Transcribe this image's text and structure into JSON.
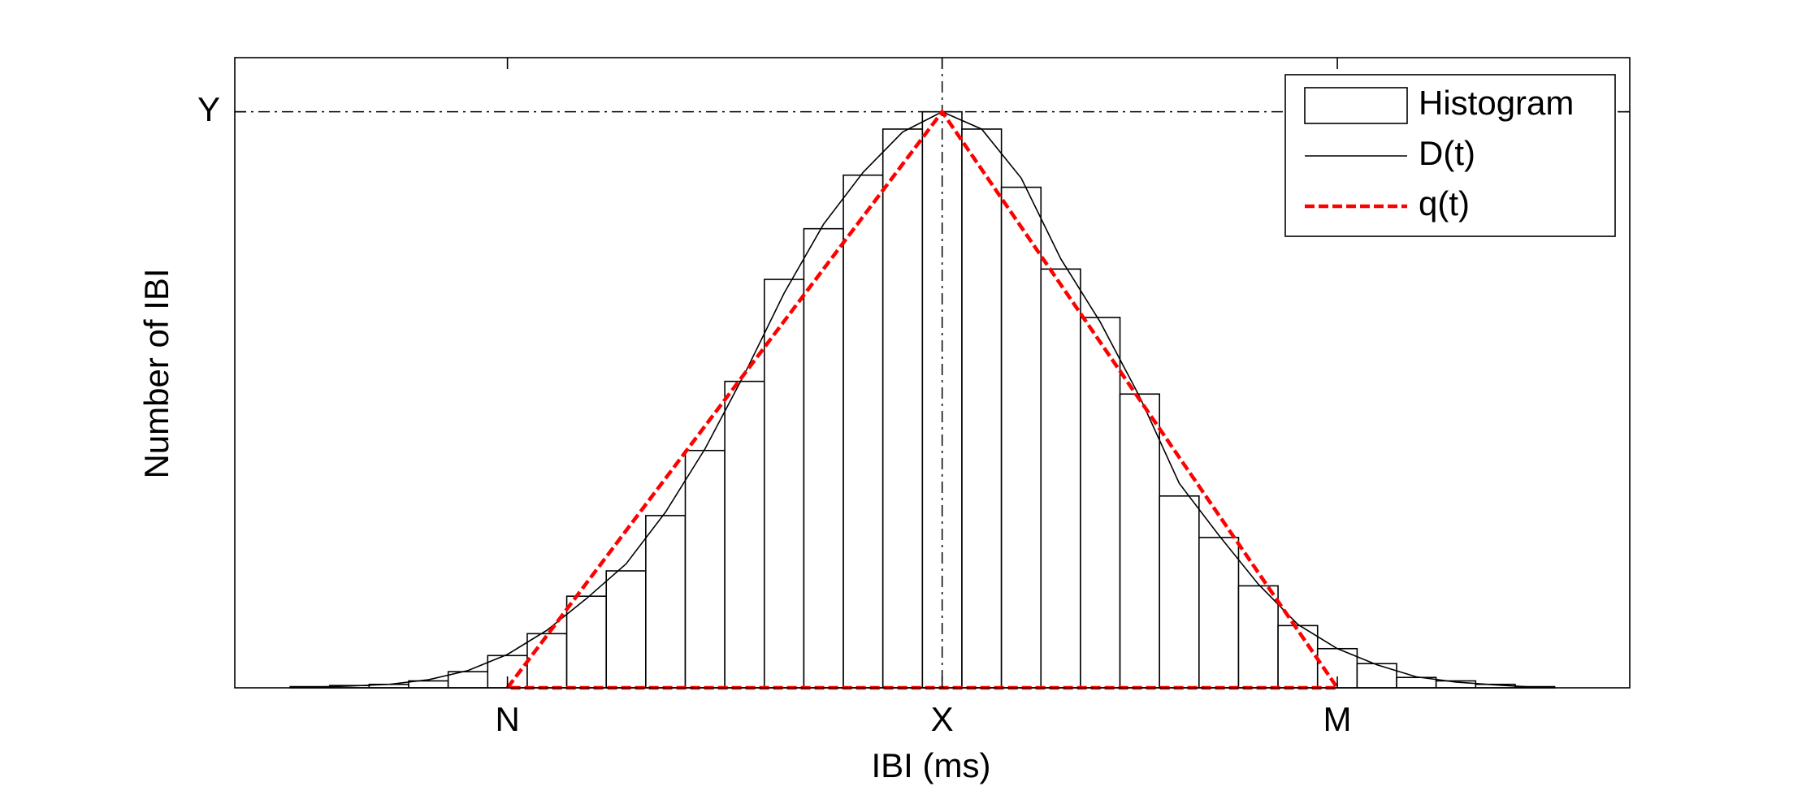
{
  "chart_data": {
    "type": "histogram",
    "xlabel": "IBI (ms)",
    "ylabel": "Number of IBI",
    "xlim": [
      -17.9,
      17.4
    ],
    "ylim": [
      0,
      109.4
    ],
    "xticks": [
      {
        "value": -11,
        "label": "N"
      },
      {
        "value": 0,
        "label": "X"
      },
      {
        "value": 10,
        "label": "M"
      }
    ],
    "yticks": [
      {
        "value": 100,
        "label": "Y"
      }
    ],
    "reference_lines": true,
    "legend": "upper right",
    "histogram": {
      "name": "Histogram",
      "color": "#000000",
      "bins": [
        -16.5,
        -15.5,
        -14.5,
        -13.5,
        -12.5,
        -11.5,
        -10.5,
        -9.5,
        -8.5,
        -7.5,
        -6.5,
        -5.5,
        -4.5,
        -3.5,
        -2.5,
        -1.5,
        -0.5,
        0.5,
        1.5,
        2.5,
        3.5,
        4.5,
        5.5,
        6.5,
        7.5,
        8.5,
        9.5,
        10.5,
        11.5,
        12.5,
        13.5,
        14.5,
        15.5
      ],
      "counts": [
        0.2,
        0.4,
        0.6,
        1.2,
        2.8,
        5.6,
        9.4,
        15.9,
        20.3,
        29.9,
        41.2,
        53.2,
        70.9,
        79.7,
        89.0,
        97.0,
        100,
        97.0,
        86.9,
        72.7,
        64.3,
        51.0,
        33.3,
        26.1,
        17.7,
        10.8,
        6.8,
        4.2,
        1.8,
        1.2,
        0.6,
        0.2
      ]
    },
    "series": [
      {
        "name": "D(t)",
        "color": "#000000",
        "dashed": false,
        "x": [
          -16,
          -15,
          -14,
          -13,
          -12,
          -11,
          -10,
          -9,
          -8,
          -7,
          -6,
          -5,
          -4,
          -3,
          -2,
          -1,
          0,
          1,
          2,
          3,
          4,
          5,
          6,
          7,
          8,
          9,
          10,
          11,
          12,
          13,
          14,
          15
        ],
        "values": [
          0.1,
          0.3,
          0.6,
          1.4,
          3.0,
          5.8,
          10.0,
          15.5,
          21.5,
          30.5,
          41.5,
          54.5,
          68.5,
          80.5,
          89.5,
          96.5,
          100,
          97,
          88.5,
          74.5,
          63.5,
          50.5,
          35.5,
          26.5,
          18.0,
          11.0,
          6.8,
          4.0,
          1.9,
          1.0,
          0.5,
          0.1
        ]
      },
      {
        "name": "q(t)",
        "color": "#ff0000",
        "dashed": true,
        "x": [
          -11,
          0,
          10,
          -11
        ],
        "values": [
          0,
          100,
          0,
          0
        ]
      }
    ]
  }
}
